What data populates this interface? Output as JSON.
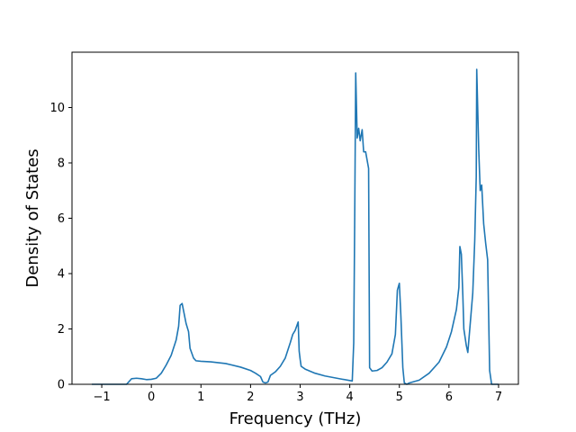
{
  "chart_data": {
    "type": "line",
    "title": "",
    "xlabel": "Frequency (THz)",
    "ylabel": "Density of States",
    "xlim": [
      -1.6,
      7.4
    ],
    "ylim": [
      0,
      12.0
    ],
    "xticks": [
      -1,
      0,
      1,
      2,
      3,
      4,
      5,
      6,
      7
    ],
    "yticks": [
      0,
      2,
      4,
      6,
      8,
      10
    ],
    "grid": false,
    "legend": "none",
    "series": [
      {
        "color": "#1f77b4",
        "points": [
          [
            -1.2,
            0.0
          ],
          [
            -0.5,
            0.0
          ],
          [
            -0.45,
            0.1
          ],
          [
            -0.4,
            0.2
          ],
          [
            -0.3,
            0.22
          ],
          [
            -0.2,
            0.2
          ],
          [
            -0.1,
            0.17
          ],
          [
            0.0,
            0.18
          ],
          [
            0.1,
            0.22
          ],
          [
            0.2,
            0.4
          ],
          [
            0.3,
            0.7
          ],
          [
            0.4,
            1.05
          ],
          [
            0.5,
            1.6
          ],
          [
            0.55,
            2.1
          ],
          [
            0.58,
            2.85
          ],
          [
            0.62,
            2.92
          ],
          [
            0.7,
            2.2
          ],
          [
            0.75,
            1.9
          ],
          [
            0.78,
            1.3
          ],
          [
            0.85,
            0.95
          ],
          [
            0.9,
            0.85
          ],
          [
            1.0,
            0.83
          ],
          [
            1.2,
            0.81
          ],
          [
            1.5,
            0.75
          ],
          [
            1.8,
            0.62
          ],
          [
            2.0,
            0.5
          ],
          [
            2.1,
            0.4
          ],
          [
            2.2,
            0.28
          ],
          [
            2.25,
            0.08
          ],
          [
            2.3,
            0.05
          ],
          [
            2.35,
            0.08
          ],
          [
            2.4,
            0.32
          ],
          [
            2.5,
            0.45
          ],
          [
            2.6,
            0.65
          ],
          [
            2.7,
            0.95
          ],
          [
            2.8,
            1.5
          ],
          [
            2.85,
            1.8
          ],
          [
            2.9,
            1.95
          ],
          [
            2.93,
            2.1
          ],
          [
            2.96,
            2.25
          ],
          [
            2.98,
            1.2
          ],
          [
            3.0,
            0.9
          ],
          [
            3.02,
            0.65
          ],
          [
            3.1,
            0.55
          ],
          [
            3.3,
            0.4
          ],
          [
            3.5,
            0.3
          ],
          [
            3.8,
            0.2
          ],
          [
            4.05,
            0.12
          ],
          [
            4.08,
            1.5
          ],
          [
            4.1,
            6.0
          ],
          [
            4.12,
            11.25
          ],
          [
            4.15,
            8.9
          ],
          [
            4.18,
            9.25
          ],
          [
            4.21,
            8.8
          ],
          [
            4.25,
            9.2
          ],
          [
            4.28,
            8.4
          ],
          [
            4.32,
            8.4
          ],
          [
            4.38,
            7.8
          ],
          [
            4.4,
            0.6
          ],
          [
            4.45,
            0.48
          ],
          [
            4.55,
            0.5
          ],
          [
            4.65,
            0.6
          ],
          [
            4.75,
            0.8
          ],
          [
            4.85,
            1.1
          ],
          [
            4.92,
            1.8
          ],
          [
            4.96,
            3.4
          ],
          [
            5.0,
            3.65
          ],
          [
            5.03,
            2.5
          ],
          [
            5.07,
            0.6
          ],
          [
            5.1,
            0.05
          ],
          [
            5.15,
            0.0
          ],
          [
            5.2,
            0.05
          ],
          [
            5.4,
            0.15
          ],
          [
            5.6,
            0.4
          ],
          [
            5.8,
            0.8
          ],
          [
            5.95,
            1.35
          ],
          [
            6.05,
            1.9
          ],
          [
            6.15,
            2.7
          ],
          [
            6.2,
            3.5
          ],
          [
            6.22,
            4.98
          ],
          [
            6.25,
            4.7
          ],
          [
            6.28,
            3.2
          ],
          [
            6.3,
            2.0
          ],
          [
            6.35,
            1.4
          ],
          [
            6.38,
            1.15
          ],
          [
            6.42,
            2.0
          ],
          [
            6.48,
            3.3
          ],
          [
            6.52,
            5.2
          ],
          [
            6.55,
            7.5
          ],
          [
            6.56,
            11.38
          ],
          [
            6.6,
            8.5
          ],
          [
            6.63,
            7.0
          ],
          [
            6.66,
            7.2
          ],
          [
            6.7,
            5.8
          ],
          [
            6.74,
            5.1
          ],
          [
            6.78,
            4.5
          ],
          [
            6.82,
            0.5
          ],
          [
            6.86,
            0.0
          ],
          [
            7.0,
            0.0
          ]
        ]
      }
    ]
  }
}
